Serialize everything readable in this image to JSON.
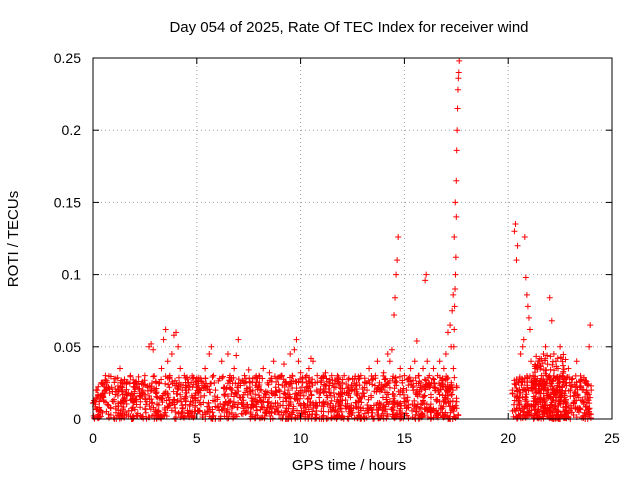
{
  "chart_data": {
    "type": "scatter",
    "title": "Day 054 of 2025, Rate Of TEC Index for receiver wind",
    "xlabel": "GPS time / hours",
    "ylabel": "ROTI / TECUs",
    "xlim": [
      0,
      25
    ],
    "ylim": [
      0,
      0.25
    ],
    "xticks": [
      0,
      5,
      10,
      15,
      20,
      25
    ],
    "xtick_labels": [
      "0",
      "5",
      "10",
      "15",
      "20",
      "25"
    ],
    "yticks": [
      0,
      0.05,
      0.1,
      0.15,
      0.2,
      0.25
    ],
    "ytick_labels": [
      "0",
      "0.05",
      "0.1",
      "0.15",
      "0.2",
      "0.25"
    ],
    "grid": true,
    "marker": "+",
    "series_color": "#ff0000",
    "series": [
      {
        "name": "ROTI",
        "points": [
          [
            0.1,
            0.012
          ],
          [
            0.2,
            0.02
          ],
          [
            0.3,
            0.008
          ],
          [
            0.4,
            0.025
          ],
          [
            0.5,
            0.015
          ],
          [
            0.6,
            0.03
          ],
          [
            0.7,
            0.01
          ],
          [
            0.8,
            0.018
          ],
          [
            0.9,
            0.022
          ],
          [
            1.0,
            0.012
          ],
          [
            1.1,
            0.028
          ],
          [
            1.2,
            0.016
          ],
          [
            1.3,
            0.035
          ],
          [
            1.4,
            0.02
          ],
          [
            1.5,
            0.012
          ],
          [
            1.6,
            0.025
          ],
          [
            1.7,
            0.018
          ],
          [
            1.8,
            0.03
          ],
          [
            1.9,
            0.014
          ],
          [
            2.0,
            0.022
          ],
          [
            2.1,
            0.01
          ],
          [
            2.2,
            0.026
          ],
          [
            2.3,
            0.016
          ],
          [
            2.4,
            0.02
          ],
          [
            2.5,
            0.03
          ],
          [
            2.6,
            0.012
          ],
          [
            2.7,
            0.05
          ],
          [
            2.8,
            0.052
          ],
          [
            2.9,
            0.048
          ],
          [
            3.0,
            0.02
          ],
          [
            3.1,
            0.015
          ],
          [
            3.2,
            0.025
          ],
          [
            3.3,
            0.035
          ],
          [
            3.4,
            0.055
          ],
          [
            3.5,
            0.062
          ],
          [
            3.6,
            0.04
          ],
          [
            3.7,
            0.03
          ],
          [
            3.8,
            0.045
          ],
          [
            3.9,
            0.058
          ],
          [
            4.0,
            0.06
          ],
          [
            4.1,
            0.05
          ],
          [
            4.2,
            0.035
          ],
          [
            4.3,
            0.02
          ],
          [
            4.4,
            0.03
          ],
          [
            4.5,
            0.018
          ],
          [
            4.6,
            0.025
          ],
          [
            4.7,
            0.012
          ],
          [
            4.8,
            0.022
          ],
          [
            4.9,
            0.015
          ],
          [
            5.0,
            0.028
          ],
          [
            5.1,
            0.018
          ],
          [
            5.2,
            0.01
          ],
          [
            5.3,
            0.025
          ],
          [
            5.4,
            0.035
          ],
          [
            5.5,
            0.02
          ],
          [
            5.6,
            0.045
          ],
          [
            5.7,
            0.05
          ],
          [
            5.8,
            0.03
          ],
          [
            5.9,
            0.02
          ],
          [
            6.0,
            0.015
          ],
          [
            6.1,
            0.028
          ],
          [
            6.2,
            0.04
          ],
          [
            6.3,
            0.022
          ],
          [
            6.4,
            0.012
          ],
          [
            6.5,
            0.045
          ],
          [
            6.6,
            0.03
          ],
          [
            6.7,
            0.02
          ],
          [
            6.8,
            0.035
          ],
          [
            6.9,
            0.044
          ],
          [
            7.0,
            0.055
          ],
          [
            7.1,
            0.025
          ],
          [
            7.2,
            0.015
          ],
          [
            7.3,
            0.03
          ],
          [
            7.4,
            0.02
          ],
          [
            7.5,
            0.034
          ],
          [
            7.6,
            0.018
          ],
          [
            7.7,
            0.028
          ],
          [
            7.8,
            0.012
          ],
          [
            7.9,
            0.022
          ],
          [
            8.0,
            0.03
          ],
          [
            8.1,
            0.02
          ],
          [
            8.2,
            0.035
          ],
          [
            8.3,
            0.015
          ],
          [
            8.4,
            0.025
          ],
          [
            8.5,
            0.032
          ],
          [
            8.6,
            0.018
          ],
          [
            8.7,
            0.04
          ],
          [
            8.8,
            0.022
          ],
          [
            8.9,
            0.028
          ],
          [
            9.0,
            0.015
          ],
          [
            9.1,
            0.03
          ],
          [
            9.2,
            0.038
          ],
          [
            9.3,
            0.025
          ],
          [
            9.4,
            0.02
          ],
          [
            9.5,
            0.045
          ],
          [
            9.6,
            0.03
          ],
          [
            9.7,
            0.048
          ],
          [
            9.8,
            0.055
          ],
          [
            9.9,
            0.04
          ],
          [
            10.0,
            0.032
          ],
          [
            10.1,
            0.025
          ],
          [
            10.2,
            0.02
          ],
          [
            10.3,
            0.03
          ],
          [
            10.4,
            0.035
          ],
          [
            10.5,
            0.042
          ],
          [
            10.6,
            0.04
          ],
          [
            10.7,
            0.025
          ],
          [
            10.8,
            0.03
          ],
          [
            10.9,
            0.018
          ],
          [
            11.0,
            0.028
          ],
          [
            11.1,
            0.02
          ],
          [
            11.2,
            0.032
          ],
          [
            11.3,
            0.015
          ],
          [
            11.4,
            0.025
          ],
          [
            11.5,
            0.03
          ],
          [
            11.6,
            0.018
          ],
          [
            11.7,
            0.022
          ],
          [
            11.8,
            0.028
          ],
          [
            11.9,
            0.012
          ],
          [
            12.0,
            0.025
          ],
          [
            12.1,
            0.03
          ],
          [
            12.2,
            0.018
          ],
          [
            12.3,
            0.022
          ],
          [
            12.4,
            0.015
          ],
          [
            12.5,
            0.028
          ],
          [
            12.6,
            0.02
          ],
          [
            12.7,
            0.025
          ],
          [
            12.8,
            0.012
          ],
          [
            12.9,
            0.03
          ],
          [
            13.0,
            0.018
          ],
          [
            13.1,
            0.025
          ],
          [
            13.2,
            0.02
          ],
          [
            13.3,
            0.035
          ],
          [
            13.4,
            0.015
          ],
          [
            13.5,
            0.028
          ],
          [
            13.6,
            0.03
          ],
          [
            13.7,
            0.04
          ],
          [
            13.8,
            0.025
          ],
          [
            13.9,
            0.02
          ],
          [
            14.0,
            0.032
          ],
          [
            14.1,
            0.028
          ],
          [
            14.2,
            0.045
          ],
          [
            14.3,
            0.04
          ],
          [
            14.4,
            0.048
          ],
          [
            14.5,
            0.072
          ],
          [
            14.55,
            0.084
          ],
          [
            14.6,
            0.1
          ],
          [
            14.65,
            0.11
          ],
          [
            14.7,
            0.126
          ],
          [
            14.8,
            0.035
          ],
          [
            14.9,
            0.025
          ],
          [
            15.0,
            0.03
          ],
          [
            15.1,
            0.02
          ],
          [
            15.2,
            0.028
          ],
          [
            15.3,
            0.035
          ],
          [
            15.4,
            0.022
          ],
          [
            15.5,
            0.04
          ],
          [
            15.6,
            0.054
          ],
          [
            15.7,
            0.03
          ],
          [
            15.8,
            0.025
          ],
          [
            15.9,
            0.035
          ],
          [
            16.0,
            0.096
          ],
          [
            16.05,
            0.1
          ],
          [
            16.1,
            0.04
          ],
          [
            16.2,
            0.03
          ],
          [
            16.3,
            0.025
          ],
          [
            16.4,
            0.035
          ],
          [
            16.5,
            0.02
          ],
          [
            16.6,
            0.03
          ],
          [
            16.7,
            0.04
          ],
          [
            16.8,
            0.025
          ],
          [
            16.9,
            0.035
          ],
          [
            17.0,
            0.045
          ],
          [
            17.1,
            0.06
          ],
          [
            17.2,
            0.065
          ],
          [
            17.25,
            0.05
          ],
          [
            17.3,
            0.075
          ],
          [
            17.35,
            0.086
          ],
          [
            17.4,
            0.126
          ],
          [
            17.45,
            0.15
          ],
          [
            17.5,
            0.165
          ],
          [
            17.52,
            0.186
          ],
          [
            17.54,
            0.2
          ],
          [
            17.56,
            0.215
          ],
          [
            17.58,
            0.228
          ],
          [
            17.6,
            0.236
          ],
          [
            17.62,
            0.24
          ],
          [
            17.64,
            0.248
          ],
          [
            17.5,
            0.14
          ],
          [
            17.48,
            0.112
          ],
          [
            17.46,
            0.1
          ],
          [
            17.44,
            0.09
          ],
          [
            17.42,
            0.078
          ],
          [
            17.4,
            0.062
          ],
          [
            17.38,
            0.05
          ],
          [
            17.36,
            0.035
          ],
          [
            17.34,
            0.02
          ],
          [
            20.2,
            0.02
          ],
          [
            20.3,
            0.13
          ],
          [
            20.35,
            0.135
          ],
          [
            20.4,
            0.11
          ],
          [
            20.45,
            0.12
          ],
          [
            20.5,
            0.025
          ],
          [
            20.6,
            0.045
          ],
          [
            20.7,
            0.05
          ],
          [
            20.75,
            0.055
          ],
          [
            20.8,
            0.126
          ],
          [
            20.85,
            0.098
          ],
          [
            20.9,
            0.086
          ],
          [
            20.95,
            0.078
          ],
          [
            21.0,
            0.07
          ],
          [
            21.05,
            0.062
          ],
          [
            21.1,
            0.04
          ],
          [
            21.2,
            0.03
          ],
          [
            21.3,
            0.035
          ],
          [
            21.4,
            0.028
          ],
          [
            21.5,
            0.04
          ],
          [
            21.6,
            0.03
          ],
          [
            21.7,
            0.045
          ],
          [
            21.8,
            0.05
          ],
          [
            21.9,
            0.038
          ],
          [
            22.0,
            0.084
          ],
          [
            22.1,
            0.068
          ],
          [
            22.2,
            0.045
          ],
          [
            22.3,
            0.04
          ],
          [
            22.4,
            0.035
          ],
          [
            22.5,
            0.05
          ],
          [
            22.6,
            0.03
          ],
          [
            22.7,
            0.028
          ],
          [
            22.8,
            0.025
          ],
          [
            22.9,
            0.035
          ],
          [
            23.0,
            0.02
          ],
          [
            23.1,
            0.028
          ],
          [
            23.2,
            0.018
          ],
          [
            23.3,
            0.04
          ],
          [
            23.4,
            0.015
          ],
          [
            23.5,
            0.022
          ],
          [
            23.6,
            0.012
          ],
          [
            23.7,
            0.025
          ],
          [
            23.8,
            0.018
          ],
          [
            23.9,
            0.05
          ],
          [
            23.95,
            0.065
          ],
          [
            24.0,
            0.02
          ]
        ]
      }
    ],
    "dense_bands": [
      {
        "x_from": 0.0,
        "x_to": 17.6,
        "y_from": 0.0,
        "y_to": 0.03,
        "density": 1400
      },
      {
        "x_from": 20.2,
        "x_to": 24.0,
        "y_from": 0.0,
        "y_to": 0.03,
        "density": 380
      },
      {
        "x_from": 21.2,
        "x_to": 22.8,
        "y_from": 0.0,
        "y_to": 0.045,
        "density": 150
      }
    ]
  }
}
